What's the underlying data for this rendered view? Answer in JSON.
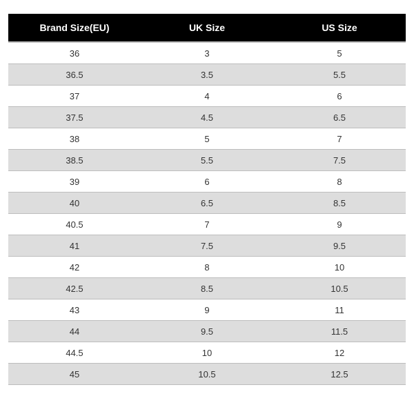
{
  "table": {
    "type": "table",
    "columns": [
      {
        "label": "Brand Size(EU)",
        "align": "center"
      },
      {
        "label": "UK Size",
        "align": "center"
      },
      {
        "label": "US Size",
        "align": "center"
      }
    ],
    "rows": [
      [
        "36",
        "3",
        "5"
      ],
      [
        "36.5",
        "3.5",
        "5.5"
      ],
      [
        "37",
        "4",
        "6"
      ],
      [
        "37.5",
        "4.5",
        "6.5"
      ],
      [
        "38",
        "5",
        "7"
      ],
      [
        "38.5",
        "5.5",
        "7.5"
      ],
      [
        "39",
        "6",
        "8"
      ],
      [
        "40",
        "6.5",
        "8.5"
      ],
      [
        "40.5",
        "7",
        "9"
      ],
      [
        "41",
        "7.5",
        "9.5"
      ],
      [
        "42",
        "8",
        "10"
      ],
      [
        "42.5",
        "8.5",
        "10.5"
      ],
      [
        "43",
        "9",
        "11"
      ],
      [
        "44",
        "9.5",
        "11.5"
      ],
      [
        "44.5",
        "10",
        "12"
      ],
      [
        "45",
        "10.5",
        "12.5"
      ]
    ],
    "styling": {
      "header_bg": "#000000",
      "header_text_color": "#ffffff",
      "header_fontsize": 14,
      "header_fontweight": "bold",
      "body_text_color": "#333333",
      "body_fontsize": 13,
      "row_odd_bg": "#ffffff",
      "row_even_bg": "#dddddd",
      "border_color": "#bdbdbd",
      "background_color": "#ffffff"
    }
  }
}
